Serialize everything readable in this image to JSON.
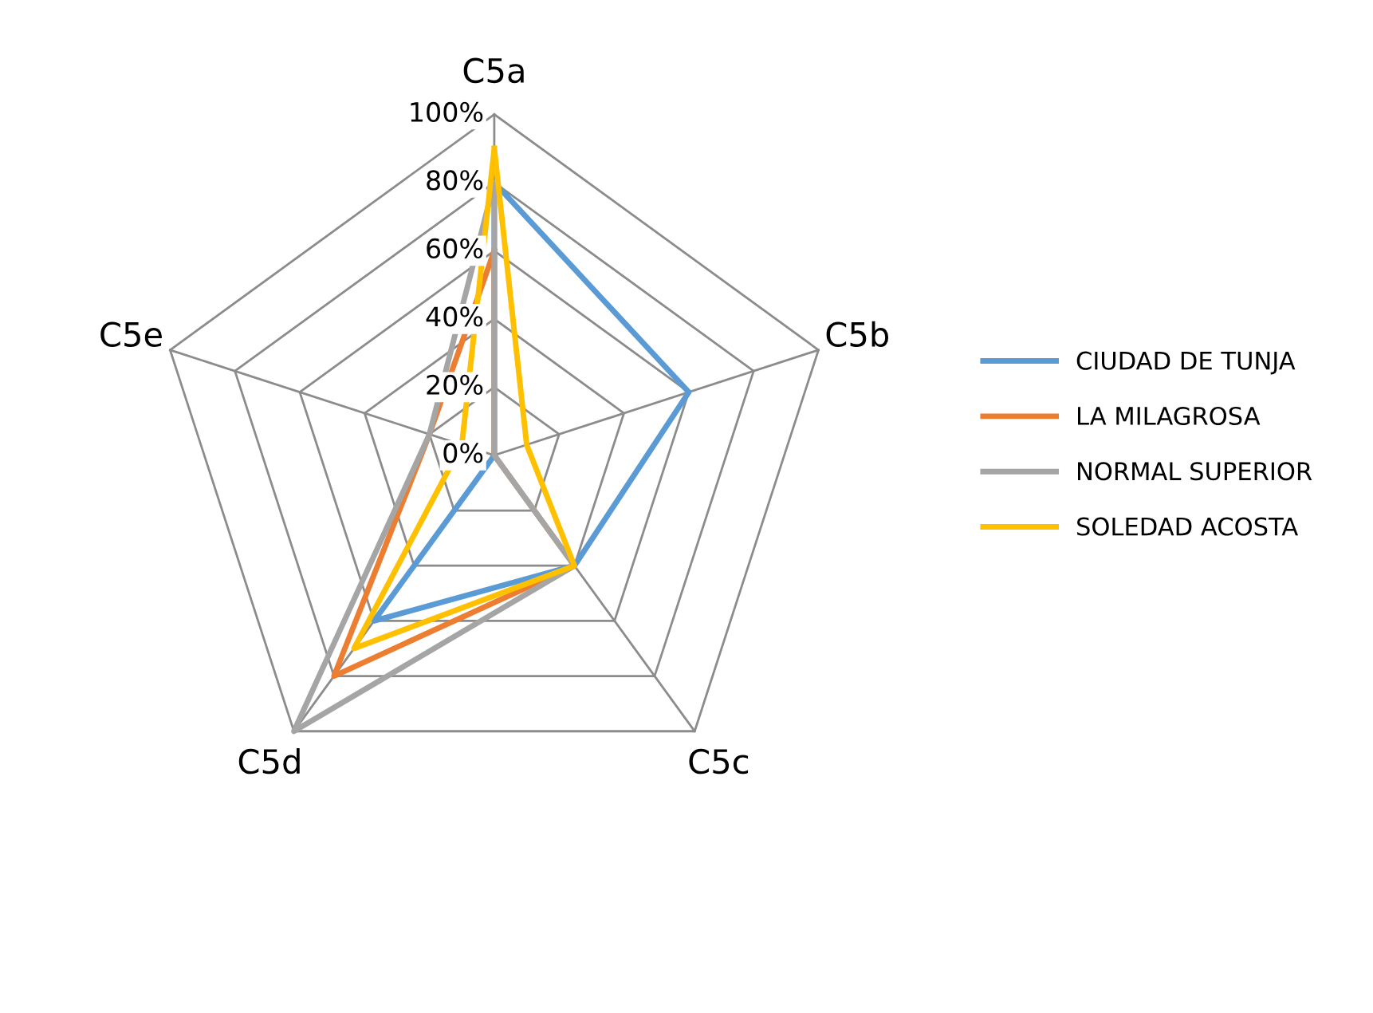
{
  "chart_data": {
    "type": "radar",
    "categories": [
      "C5a",
      "C5b",
      "C5c",
      "C5d",
      "C5e"
    ],
    "ylim": [
      0,
      1
    ],
    "yticks": [
      {
        "value": 0,
        "label": "0%"
      },
      {
        "value": 0.2,
        "label": "20%"
      },
      {
        "value": 0.4,
        "label": "40%"
      },
      {
        "value": 0.6,
        "label": "60%"
      },
      {
        "value": 0.8,
        "label": "80%"
      },
      {
        "value": 1,
        "label": "100%"
      }
    ],
    "legend": "right",
    "marker": "none",
    "series": [
      {
        "name": "CIUDAD DE TUNJA",
        "color": "#5b9bd5",
        "values": [
          0.8,
          0.6,
          0.4,
          0.6,
          0
        ]
      },
      {
        "name": "LA MILAGROSA",
        "color": "#ed7d31",
        "values": [
          0.6,
          0,
          0.4,
          0.8,
          0.2
        ]
      },
      {
        "name": "NORMAL SUPERIOR",
        "color": "#a5a5a5",
        "values": [
          0.8,
          0,
          0.4,
          1,
          0.2
        ]
      },
      {
        "name": "SOLEDAD ACOSTA",
        "color": "#ffc000",
        "values": [
          0.9,
          0.1,
          0.4,
          0.7,
          0.1
        ]
      }
    ]
  }
}
